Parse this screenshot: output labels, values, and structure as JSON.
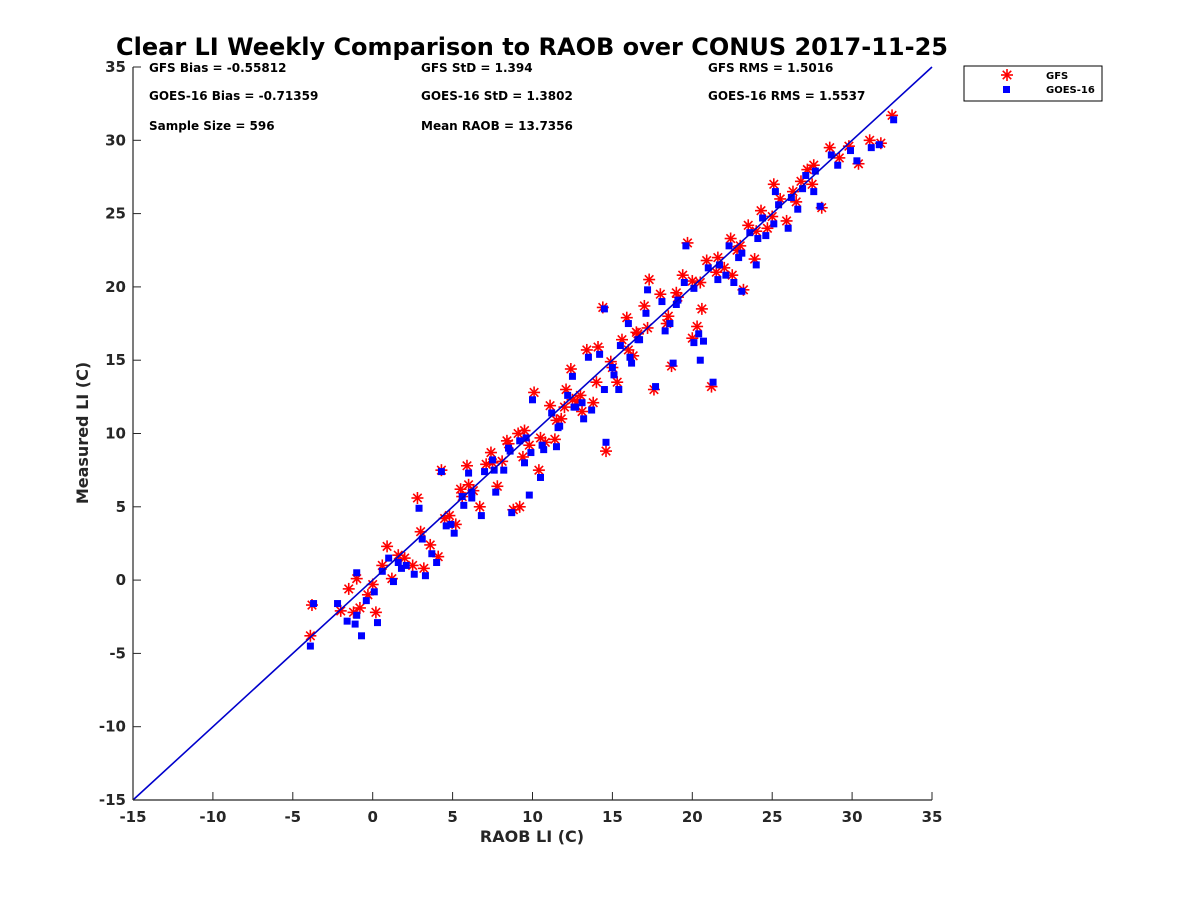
{
  "chart_data": {
    "type": "scatter",
    "title": "Clear LI Weekly Comparison to RAOB over CONUS 2017-11-25",
    "xlabel": "RAOB LI (C)",
    "ylabel": "Measured LI (C)",
    "xlim": [
      -15,
      35
    ],
    "ylim": [
      -15,
      35
    ],
    "xticks": [
      "-15",
      "-10",
      "-5",
      "0",
      "5",
      "10",
      "15",
      "20",
      "25",
      "30",
      "35"
    ],
    "yticks": [
      "-15",
      "-10",
      "-5",
      "0",
      "5",
      "10",
      "15",
      "20",
      "25",
      "30",
      "35"
    ],
    "grid": false,
    "legend_position": "outside top-right",
    "reference_line": {
      "name": "1:1 line",
      "color": "#0000cc",
      "from": [
        -15,
        -15
      ],
      "to": [
        35,
        35
      ]
    },
    "stats": {
      "gfs_bias": "GFS Bias = -0.55812",
      "goes_bias": "GOES-16 Bias = -0.71359",
      "sample_size": "Sample Size = 596",
      "gfs_std": "GFS StD = 1.394",
      "goes_std": "GOES-16 StD = 1.3802",
      "mean_raob": "Mean RAOB = 13.7356",
      "gfs_rms": "GFS RMS = 1.5016",
      "goes_rms": "GOES-16 RMS = 1.5537"
    },
    "series": [
      {
        "name": "GFS",
        "marker": "asterisk",
        "color": "#ff0000",
        "x": [
          -3.9,
          -3.8,
          -2.0,
          -1.5,
          -1.2,
          -1.0,
          -0.8,
          -0.3,
          0.2,
          0.6,
          0.9,
          1.2,
          1.6,
          2.0,
          2.5,
          2.8,
          3.2,
          3.6,
          4.1,
          4.3,
          4.8,
          5.2,
          5.6,
          5.9,
          6.3,
          6.7,
          7.1,
          7.4,
          7.8,
          8.1,
          8.4,
          8.8,
          9.1,
          9.4,
          9.8,
          10.1,
          10.4,
          10.8,
          11.1,
          11.4,
          11.8,
          12.1,
          12.4,
          12.8,
          13.1,
          13.4,
          13.8,
          14.1,
          14.4,
          14.6,
          14.9,
          15.3,
          15.6,
          15.9,
          16.3,
          16.6,
          17.0,
          17.3,
          17.6,
          18.0,
          18.4,
          18.7,
          19.1,
          19.4,
          19.7,
          20.0,
          20.3,
          20.6,
          20.9,
          21.2,
          21.6,
          22.0,
          22.4,
          22.8,
          23.2,
          23.5,
          23.9,
          24.3,
          24.7,
          25.1,
          25.5,
          25.9,
          26.3,
          26.8,
          27.2,
          27.6,
          28.1,
          28.6,
          29.2,
          29.8,
          30.4,
          31.1,
          31.8,
          32.5,
          17.2,
          20.5,
          9.2,
          12.0,
          6.0,
          22.5,
          26.5,
          10.5,
          14.0,
          8.5,
          24.0,
          16.5,
          11.5,
          7.5,
          19.0,
          15.0,
          13.0,
          21.5,
          5.5,
          18.5,
          12.5,
          9.5,
          25.0,
          27.5,
          0.0,
          3.0,
          4.5,
          23.0,
          20.0,
          16.0
        ],
        "y": [
          -3.8,
          -1.7,
          -2.1,
          -0.6,
          -2.2,
          0.1,
          -1.9,
          -1.0,
          -2.2,
          1.0,
          2.3,
          0.1,
          1.7,
          1.5,
          1.0,
          5.6,
          0.8,
          2.4,
          1.6,
          7.5,
          4.4,
          3.8,
          5.7,
          7.8,
          6.1,
          5.0,
          7.9,
          8.7,
          6.4,
          8.1,
          9.5,
          4.8,
          10.0,
          8.4,
          9.2,
          12.8,
          7.5,
          9.4,
          11.9,
          9.6,
          11.0,
          13.0,
          14.4,
          12.2,
          11.5,
          15.7,
          12.1,
          15.9,
          18.6,
          8.8,
          14.9,
          13.5,
          16.4,
          17.9,
          15.3,
          16.8,
          18.7,
          20.5,
          13.0,
          19.5,
          17.5,
          14.6,
          19.3,
          20.8,
          23.0,
          16.5,
          17.3,
          18.5,
          21.8,
          13.2,
          22.0,
          21.3,
          23.3,
          22.5,
          19.8,
          24.2,
          21.9,
          25.2,
          24.0,
          27.0,
          26.0,
          24.5,
          26.5,
          27.2,
          28.0,
          28.3,
          25.4,
          29.5,
          28.8,
          29.6,
          28.4,
          30.0,
          29.8,
          31.7,
          17.2,
          20.3,
          5.0,
          11.8,
          6.5,
          20.8,
          25.8,
          9.7,
          13.5,
          9.3,
          23.8,
          16.9,
          10.9,
          8.0,
          19.6,
          14.5,
          12.6,
          21.0,
          6.2,
          18.0,
          12.3,
          10.2,
          24.8,
          27.0,
          -0.3,
          3.3,
          4.2,
          22.8,
          20.4,
          15.7
        ]
      },
      {
        "name": "GOES-16",
        "marker": "square",
        "color": "#0000ff",
        "x": [
          -3.9,
          -3.7,
          -2.2,
          -1.6,
          -1.1,
          -1.0,
          -0.7,
          -0.4,
          0.3,
          0.6,
          1.0,
          1.3,
          1.6,
          2.1,
          2.6,
          2.9,
          3.3,
          3.7,
          4.0,
          4.3,
          4.9,
          5.1,
          5.7,
          6.0,
          6.2,
          6.8,
          7.0,
          7.5,
          7.7,
          8.2,
          8.5,
          8.7,
          9.2,
          9.5,
          9.9,
          10.0,
          10.5,
          10.7,
          11.2,
          11.5,
          11.7,
          12.2,
          12.5,
          12.7,
          13.2,
          13.5,
          13.7,
          14.2,
          14.5,
          14.6,
          15.0,
          15.4,
          15.5,
          16.0,
          16.2,
          16.7,
          17.1,
          17.2,
          17.7,
          18.1,
          18.3,
          18.8,
          19.0,
          19.5,
          19.6,
          20.1,
          20.4,
          20.5,
          21.0,
          21.3,
          21.7,
          22.1,
          22.3,
          22.9,
          23.1,
          23.6,
          24.0,
          24.4,
          24.6,
          25.2,
          25.4,
          26.0,
          26.2,
          26.9,
          27.1,
          27.7,
          28.0,
          28.7,
          29.1,
          29.9,
          30.3,
          31.2,
          31.7,
          32.6,
          20.7,
          9.8,
          14.5,
          6.2,
          22.6,
          26.6,
          10.6,
          8.6,
          24.1,
          16.6,
          11.6,
          7.6,
          19.1,
          15.1,
          13.1,
          21.6,
          5.6,
          18.6,
          12.6,
          9.6,
          25.1,
          27.6,
          0.1,
          3.1,
          4.6,
          23.1,
          20.1,
          16.1,
          -1.0,
          1.8
        ],
        "y": [
          -4.5,
          -1.6,
          -1.6,
          -2.8,
          -3.0,
          0.5,
          -3.8,
          -1.4,
          -2.9,
          0.6,
          1.5,
          -0.1,
          1.2,
          1.0,
          0.4,
          4.9,
          0.3,
          1.8,
          1.2,
          7.4,
          3.8,
          3.2,
          5.1,
          7.3,
          5.6,
          4.4,
          7.4,
          8.2,
          6.0,
          7.5,
          9.0,
          4.6,
          9.5,
          8.0,
          8.7,
          12.3,
          7.0,
          8.9,
          11.4,
          9.1,
          10.5,
          12.6,
          13.9,
          11.8,
          11.0,
          15.2,
          11.6,
          15.4,
          18.5,
          9.4,
          14.5,
          13.0,
          16.0,
          17.5,
          14.8,
          16.4,
          18.2,
          19.8,
          13.2,
          19.0,
          17.0,
          14.8,
          18.8,
          20.3,
          22.8,
          16.2,
          16.8,
          15.0,
          21.3,
          13.5,
          21.5,
          20.8,
          22.8,
          22.0,
          19.7,
          23.7,
          21.5,
          24.7,
          23.5,
          26.5,
          25.6,
          24.0,
          26.1,
          26.7,
          27.6,
          27.9,
          25.5,
          29.0,
          28.3,
          29.3,
          28.6,
          29.5,
          29.7,
          31.4,
          16.3,
          5.8,
          13.0,
          6.0,
          20.3,
          25.3,
          9.2,
          8.8,
          23.3,
          16.4,
          10.4,
          7.5,
          19.1,
          14.0,
          12.1,
          20.5,
          5.7,
          17.5,
          11.8,
          9.7,
          24.3,
          26.5,
          -0.8,
          2.8,
          3.7,
          22.3,
          19.9,
          15.2,
          -2.4,
          0.8
        ]
      }
    ]
  }
}
